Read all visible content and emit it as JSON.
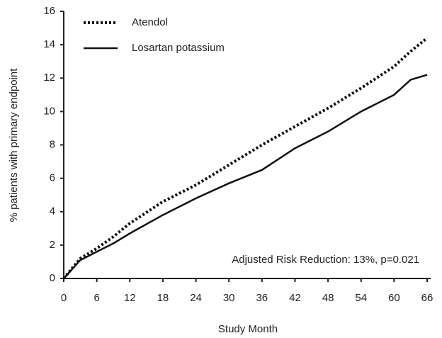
{
  "chart_data": {
    "type": "line",
    "x_label": "Study Month",
    "y_label": "% patients with primary endpoint",
    "annotation": "Adjusted Risk Reduction:  13%, p=0.021",
    "xlim": [
      0,
      66
    ],
    "xticks": [
      0,
      6,
      12,
      18,
      24,
      30,
      36,
      42,
      48,
      54,
      60,
      66
    ],
    "ylim": [
      0,
      16
    ],
    "yticks": [
      0,
      2,
      4,
      6,
      8,
      10,
      12,
      14,
      16
    ],
    "legend": "top-left",
    "series": [
      {
        "name": "Atendol",
        "color": "#111111",
        "style": "dotted",
        "x": [
          0,
          3,
          6,
          9,
          12,
          18,
          24,
          30,
          36,
          42,
          48,
          54,
          60,
          63,
          66
        ],
        "values": [
          0,
          1.2,
          1.8,
          2.5,
          3.3,
          4.6,
          5.6,
          6.8,
          8,
          9.1,
          10.2,
          11.4,
          12.7,
          13.6,
          14.4
        ]
      },
      {
        "name": "Losartan potassium",
        "color": "#111111",
        "style": "solid",
        "x": [
          0,
          3,
          6,
          9,
          12,
          18,
          24,
          30,
          36,
          42,
          48,
          54,
          60,
          63,
          66
        ],
        "values": [
          0,
          1.1,
          1.6,
          2.1,
          2.7,
          3.8,
          4.8,
          5.7,
          6.5,
          7.8,
          8.8,
          10,
          11,
          11.9,
          12.2
        ]
      }
    ]
  }
}
